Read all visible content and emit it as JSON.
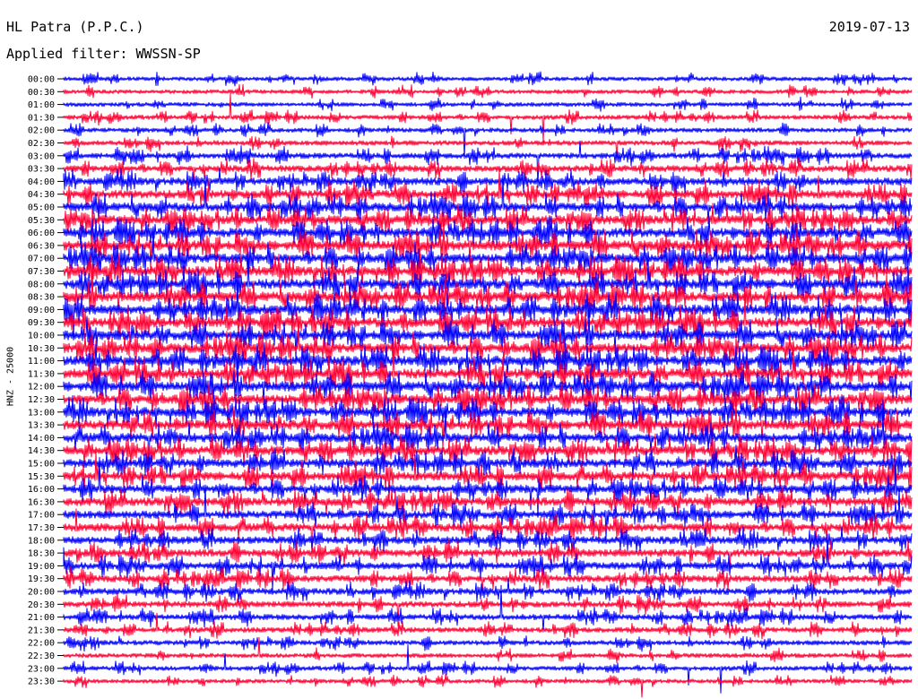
{
  "header": {
    "station": "HL Patra (P.P.C.)",
    "date": "2019-07-13",
    "filter": "Applied filter: WWSSN-SP"
  },
  "chart_data": {
    "type": "line",
    "channel_label": "HNZ - 25000",
    "time_labels": [
      "00:00",
      "00:30",
      "01:00",
      "01:30",
      "02:00",
      "02:30",
      "03:00",
      "03:30",
      "04:00",
      "04:30",
      "05:00",
      "05:30",
      "06:00",
      "06:30",
      "07:00",
      "07:30",
      "08:00",
      "08:30",
      "09:00",
      "09:30",
      "10:00",
      "10:30",
      "11:00",
      "11:30",
      "12:00",
      "12:30",
      "13:00",
      "13:30",
      "14:00",
      "14:30",
      "15:00",
      "15:30",
      "16:00",
      "16:30",
      "17:00",
      "17:30",
      "18:00",
      "18:30",
      "19:00",
      "19:30",
      "20:00",
      "20:30",
      "21:00",
      "21:30",
      "22:00",
      "22:30",
      "23:00",
      "23:30"
    ],
    "trace_colors": [
      "#0000ff",
      "#ff0033"
    ],
    "relative_activity_by_row": [
      0.25,
      0.25,
      0.25,
      0.3,
      0.3,
      0.35,
      0.45,
      0.55,
      0.7,
      0.8,
      0.85,
      0.9,
      0.95,
      1.0,
      1.0,
      1.0,
      1.0,
      1.0,
      1.0,
      1.0,
      1.0,
      1.0,
      1.0,
      1.0,
      1.0,
      1.0,
      0.95,
      0.95,
      0.9,
      0.9,
      0.85,
      0.85,
      0.8,
      0.8,
      0.75,
      0.75,
      0.7,
      0.7,
      0.65,
      0.6,
      0.55,
      0.5,
      0.45,
      0.4,
      0.35,
      0.3,
      0.3,
      0.25
    ]
  }
}
